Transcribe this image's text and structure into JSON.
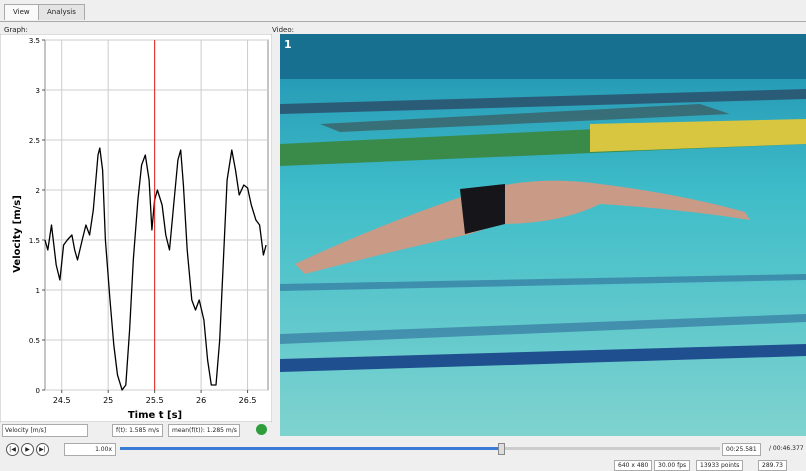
{
  "tabs": [
    "View",
    "Analysis"
  ],
  "graph_label": "Graph:",
  "video_label": "Video:",
  "chart_data": {
    "type": "line",
    "y_label": "Velocity [m/s]",
    "x_label": "Time t [s]",
    "x": [
      24.32,
      24.35,
      24.39,
      24.44,
      24.48,
      24.52,
      24.56,
      24.61,
      24.64,
      24.67,
      24.72,
      24.76,
      24.8,
      24.84,
      24.89,
      24.91,
      24.94,
      24.97,
      25.02,
      25.06,
      25.1,
      25.15,
      25.19,
      25.23,
      25.27,
      25.32,
      25.36,
      25.4,
      25.44,
      25.47,
      25.5,
      25.53,
      25.58,
      25.62,
      25.66,
      25.7,
      25.75,
      25.78,
      25.81,
      25.85,
      25.9,
      25.94,
      25.98,
      26.03,
      26.07,
      26.11,
      26.16,
      26.2,
      26.24,
      26.28,
      26.33,
      26.37,
      26.41,
      26.46,
      26.5,
      26.54,
      26.59,
      26.63,
      26.67,
      26.7
    ],
    "values": [
      1.5,
      1.4,
      1.65,
      1.25,
      1.1,
      1.45,
      1.5,
      1.55,
      1.4,
      1.3,
      1.5,
      1.65,
      1.55,
      1.8,
      2.35,
      2.42,
      2.2,
      1.5,
      0.9,
      0.45,
      0.15,
      0.0,
      0.05,
      0.6,
      1.3,
      1.9,
      2.25,
      2.35,
      2.1,
      1.6,
      1.9,
      2.0,
      1.85,
      1.55,
      1.4,
      1.8,
      2.3,
      2.4,
      2.05,
      1.4,
      0.9,
      0.8,
      0.9,
      0.7,
      0.3,
      0.05,
      0.05,
      0.5,
      1.3,
      2.1,
      2.4,
      2.2,
      1.95,
      2.05,
      2.02,
      1.85,
      1.7,
      1.65,
      1.35,
      1.45
    ],
    "color": "#000000",
    "xlim": [
      24.32,
      26.72
    ],
    "ylim": [
      0,
      3.5
    ],
    "xticks": [
      24.5,
      25,
      25.5,
      26,
      26.5
    ],
    "yticks": [
      0,
      0.5,
      1,
      1.5,
      2,
      2.5,
      3,
      3.5
    ],
    "grid": true,
    "cursor_x": 25.5,
    "cursor_color": "#e02020"
  },
  "controls": {
    "quantity": "Velocity [m/s]",
    "f_value": "f(t): 1.585 m/s",
    "mean_value": "mean(f(t)): 1.285 m/s"
  },
  "video_overlay": "1",
  "playback": {
    "speed": "1.00x",
    "time": "00:25.581",
    "duration": "/ 00:46.377"
  },
  "status": [
    "640 x 480",
    "30.00 fps",
    "13933 points",
    "289.73"
  ]
}
